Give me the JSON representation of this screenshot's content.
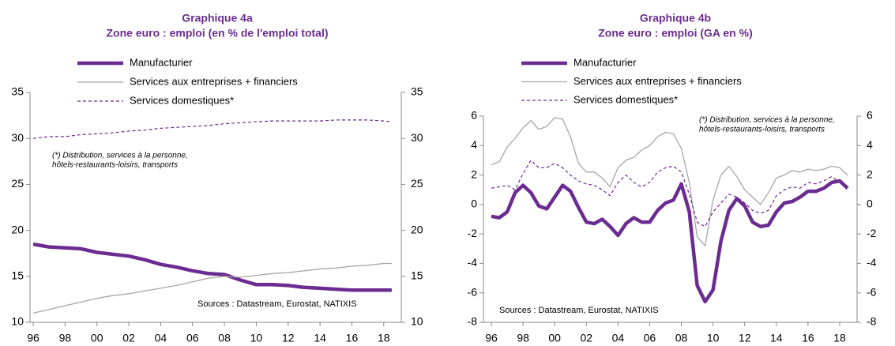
{
  "chart_data": [
    {
      "type": "line",
      "title": "Graphique 4a",
      "subtitle": "Zone euro : emploi (en % de l'emploi total)",
      "x": [
        1996,
        1997,
        1998,
        1999,
        2000,
        2001,
        2002,
        2003,
        2004,
        2005,
        2006,
        2007,
        2008,
        2009,
        2010,
        2011,
        2012,
        2013,
        2014,
        2015,
        2016,
        2017,
        2018,
        2018.5
      ],
      "series": [
        {
          "name": "Manufacturier",
          "color": "#6b2c91",
          "values": [
            18.5,
            18.2,
            18.1,
            18.0,
            17.6,
            17.4,
            17.2,
            16.8,
            16.3,
            16.0,
            15.6,
            15.3,
            15.2,
            14.6,
            14.1,
            14.1,
            14.0,
            13.8,
            13.7,
            13.6,
            13.5,
            13.5,
            13.5,
            13.5
          ]
        },
        {
          "name": "Services aux entreprises + financiers",
          "color": "#a6a6a6",
          "values": [
            11.0,
            11.4,
            11.8,
            12.2,
            12.6,
            12.9,
            13.1,
            13.4,
            13.7,
            14.0,
            14.4,
            14.8,
            15.0,
            14.9,
            15.1,
            15.3,
            15.4,
            15.6,
            15.8,
            15.9,
            16.1,
            16.2,
            16.4,
            16.4
          ]
        },
        {
          "name": "Services domestiques*",
          "color": "#6b2c91",
          "values": [
            30.0,
            30.2,
            30.2,
            30.4,
            30.5,
            30.6,
            30.8,
            30.9,
            31.1,
            31.2,
            31.3,
            31.4,
            31.6,
            31.7,
            31.8,
            31.9,
            31.9,
            31.9,
            31.9,
            32.0,
            32.0,
            32.0,
            31.9,
            31.8
          ]
        }
      ],
      "annotations": [
        "(*) Distribution, services à la personne,",
        "hôtels-restaurants-loisirs, transports",
        "Sources : Datastream, Eurostat, NATIXIS"
      ],
      "xlim": [
        1995.8,
        2019.1
      ],
      "xticks": [
        {
          "value": 1996,
          "label": "96"
        },
        {
          "value": 1998,
          "label": "98"
        },
        {
          "value": 2000,
          "label": "00"
        },
        {
          "value": 2002,
          "label": "02"
        },
        {
          "value": 2004,
          "label": "04"
        },
        {
          "value": 2006,
          "label": "06"
        },
        {
          "value": 2008,
          "label": "08"
        },
        {
          "value": 2010,
          "label": "10"
        },
        {
          "value": 2012,
          "label": "12"
        },
        {
          "value": 2014,
          "label": "14"
        },
        {
          "value": 2016,
          "label": "16"
        },
        {
          "value": 2018,
          "label": "18"
        }
      ],
      "ylim": [
        10,
        35
      ],
      "yticks": [
        10,
        15,
        20,
        25,
        30,
        35
      ],
      "y2lim": [
        10,
        35
      ],
      "y2ticks": [
        10,
        15,
        20,
        25,
        30,
        35
      ]
    },
    {
      "type": "line",
      "title": "Graphique 4b",
      "subtitle": "Zone euro : emploi (GA en %)",
      "x": [
        1996,
        1996.5,
        1997,
        1997.5,
        1998,
        1998.5,
        1999,
        1999.5,
        2000,
        2000.5,
        2001,
        2001.5,
        2002,
        2002.5,
        2003,
        2003.5,
        2004,
        2004.5,
        2005,
        2005.5,
        2006,
        2006.5,
        2007,
        2007.5,
        2008,
        2008.5,
        2009,
        2009.5,
        2010,
        2010.5,
        2011,
        2011.5,
        2012,
        2012.5,
        2013,
        2013.5,
        2014,
        2014.5,
        2015,
        2015.5,
        2016,
        2016.5,
        2017,
        2017.5,
        2018,
        2018.5
      ],
      "series": [
        {
          "name": "Manufacturier",
          "color": "#6b2c91",
          "values": [
            -0.8,
            -0.9,
            -0.5,
            0.8,
            1.3,
            0.8,
            -0.1,
            -0.3,
            0.5,
            1.3,
            0.9,
            -0.2,
            -1.2,
            -1.3,
            -1.0,
            -1.5,
            -2.1,
            -1.3,
            -0.9,
            -1.2,
            -1.2,
            -0.4,
            0.1,
            0.3,
            1.4,
            -0.5,
            -5.5,
            -6.6,
            -5.8,
            -2.5,
            -0.4,
            0.4,
            -0.1,
            -1.2,
            -1.5,
            -1.4,
            -0.5,
            0.1,
            0.2,
            0.5,
            0.9,
            0.9,
            1.1,
            1.5,
            1.6,
            1.1
          ]
        },
        {
          "name": "Services aux entreprises + financiers",
          "color": "#a6a6a6",
          "values": [
            2.7,
            2.9,
            3.9,
            4.5,
            5.2,
            5.7,
            5.1,
            5.3,
            5.9,
            5.8,
            4.6,
            2.8,
            2.2,
            2.2,
            1.8,
            1.2,
            2.5,
            3.0,
            3.2,
            3.7,
            4.0,
            4.6,
            4.9,
            4.8,
            3.8,
            1.5,
            -2.2,
            -2.8,
            0.3,
            2.0,
            2.6,
            1.9,
            1.0,
            0.5,
            0.0,
            0.8,
            1.8,
            2.0,
            2.3,
            2.2,
            2.4,
            2.3,
            2.4,
            2.6,
            2.5,
            2.0
          ]
        },
        {
          "name": "Services domestiques*",
          "color": "#6b2c91",
          "values": [
            1.1,
            1.2,
            1.3,
            1.0,
            2.1,
            3.0,
            2.5,
            2.5,
            2.8,
            2.5,
            2.0,
            1.6,
            1.4,
            1.3,
            1.0,
            0.6,
            1.5,
            2.0,
            1.5,
            1.2,
            1.5,
            2.2,
            2.5,
            2.6,
            2.2,
            0.7,
            -1.2,
            -1.5,
            -0.5,
            0.1,
            0.7,
            0.5,
            0.1,
            -0.4,
            -0.6,
            -0.4,
            0.6,
            1.0,
            1.2,
            1.1,
            1.5,
            1.4,
            1.6,
            1.9,
            1.5,
            1.2
          ]
        }
      ],
      "annotations": [
        "(*) Distribution, services à la personne,",
        "hôtels-restaurants-loisirs, transports",
        "Sources : Datastream, Eurostat, NATIXIS"
      ],
      "xlim": [
        1995.5,
        2019.1
      ],
      "xticks": [
        {
          "value": 1996,
          "label": "96"
        },
        {
          "value": 1998,
          "label": "98"
        },
        {
          "value": 2000,
          "label": "00"
        },
        {
          "value": 2002,
          "label": "02"
        },
        {
          "value": 2004,
          "label": "04"
        },
        {
          "value": 2006,
          "label": "06"
        },
        {
          "value": 2008,
          "label": "08"
        },
        {
          "value": 2010,
          "label": "10"
        },
        {
          "value": 2012,
          "label": "12"
        },
        {
          "value": 2014,
          "label": "14"
        },
        {
          "value": 2016,
          "label": "16"
        },
        {
          "value": 2018,
          "label": "18"
        }
      ],
      "ylim": [
        -8,
        6
      ],
      "yticks": [
        -8,
        -6,
        -4,
        -2,
        0,
        2,
        4,
        6
      ],
      "y2lim": [
        -8,
        6
      ],
      "y2ticks": [
        -8,
        -6,
        -4,
        -2,
        0,
        2,
        4,
        6
      ]
    }
  ]
}
